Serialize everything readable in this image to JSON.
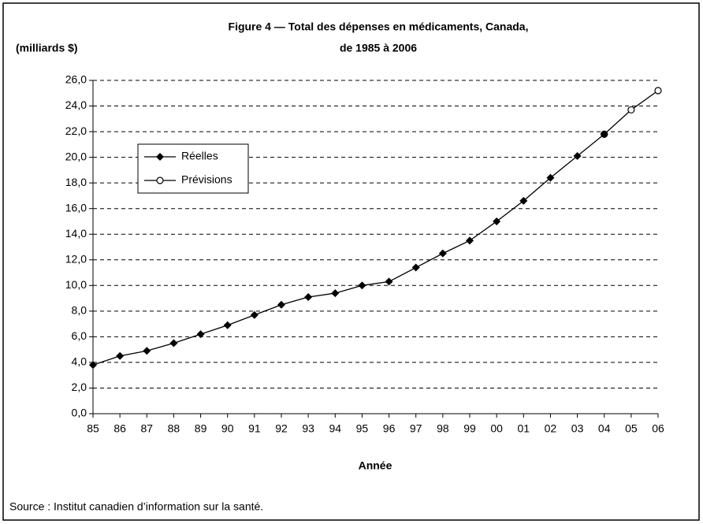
{
  "chart_data": {
    "type": "line",
    "title": "Figure 4 — Total des dépenses en médicaments, Canada,",
    "subtitle": "de 1985 à 2006",
    "y_label": "(milliards $)",
    "x_label": "Année",
    "source": "Source : Institut canadien d’information sur la santé.",
    "categories": [
      "85",
      "86",
      "87",
      "88",
      "89",
      "90",
      "91",
      "92",
      "93",
      "94",
      "95",
      "96",
      "97",
      "98",
      "99",
      "00",
      "01",
      "02",
      "03",
      "04",
      "05",
      "06"
    ],
    "series": [
      {
        "name": "Réelles",
        "color": "#000000",
        "marker": "diamond",
        "values": [
          3.8,
          4.5,
          4.9,
          5.5,
          6.2,
          6.9,
          7.7,
          8.5,
          9.1,
          9.4,
          10.0,
          10.3,
          11.4,
          12.5,
          13.5,
          15.0,
          16.6,
          18.4,
          20.1,
          21.8,
          null,
          null
        ]
      },
      {
        "name": "Prévisions",
        "color": "#000000",
        "marker": "circle",
        "values": [
          null,
          null,
          null,
          null,
          null,
          null,
          null,
          null,
          null,
          null,
          null,
          null,
          null,
          null,
          null,
          null,
          null,
          null,
          null,
          21.8,
          23.7,
          25.2
        ]
      }
    ],
    "ylim": [
      0,
      26
    ],
    "yticks": [
      {
        "value": 0,
        "label": "0,0"
      },
      {
        "value": 2,
        "label": "2,0"
      },
      {
        "value": 4,
        "label": "4,0"
      },
      {
        "value": 6,
        "label": "6,0"
      },
      {
        "value": 8,
        "label": "8,0"
      },
      {
        "value": 10,
        "label": "10,0"
      },
      {
        "value": 12,
        "label": "12,0"
      },
      {
        "value": 14,
        "label": "14,0"
      },
      {
        "value": 16,
        "label": "16,0"
      },
      {
        "value": 18,
        "label": "18,0"
      },
      {
        "value": 20,
        "label": "20,0"
      },
      {
        "value": 22,
        "label": "22,0"
      },
      {
        "value": 24,
        "label": "24,0"
      },
      {
        "value": 26,
        "label": "26,0"
      }
    ],
    "grid": true,
    "legend": "upper left"
  }
}
